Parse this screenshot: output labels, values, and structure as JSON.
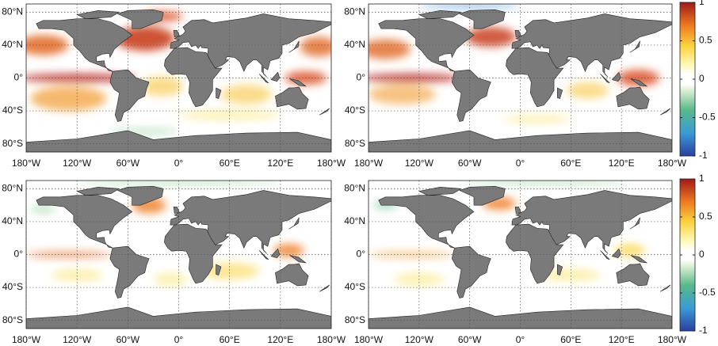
{
  "lon_ticks": [
    {
      "value": -180,
      "label": "180°W"
    },
    {
      "value": -120,
      "label": "120°W"
    },
    {
      "value": -60,
      "label": "60°W"
    },
    {
      "value": 0,
      "label": "0°"
    },
    {
      "value": 60,
      "label": "60°E"
    },
    {
      "value": 120,
      "label": "120°E"
    },
    {
      "value": 180,
      "label": "180°W"
    }
  ],
  "lat_ticks": [
    {
      "value": 80,
      "label": "80°N"
    },
    {
      "value": 40,
      "label": "40°N"
    },
    {
      "value": 0,
      "label": "0°"
    },
    {
      "value": -40,
      "label": "40°S"
    },
    {
      "value": -80,
      "label": "80°S"
    }
  ],
  "colorbar": {
    "lim": [
      -1,
      1
    ],
    "ticks": [
      1,
      0.5,
      0,
      -0.5,
      -1
    ]
  }
}
